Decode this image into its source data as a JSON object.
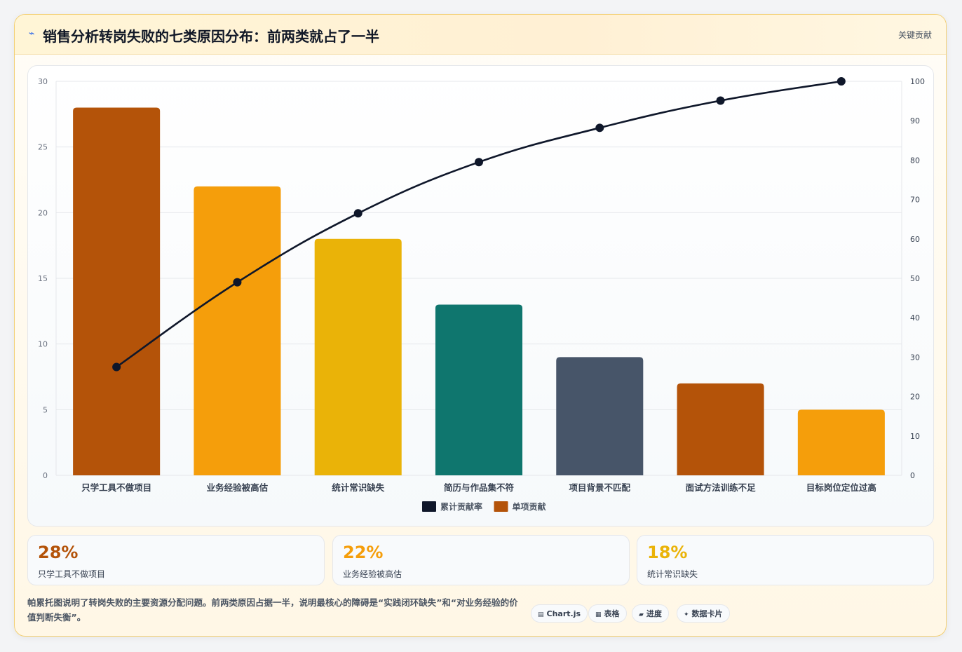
{
  "header": {
    "icon": "lightning-icon",
    "title": "销售分析转岗失败的七类原因分布：前两类就占了一半",
    "tag": "关键贡献"
  },
  "chart_data": {
    "type": "bar",
    "title": "",
    "categories": [
      "只学工具不做项目",
      "业务经验被高估",
      "统计常识缺失",
      "简历与作品集不符",
      "项目背景不匹配",
      "面试方法训练不足",
      "目标岗位定位过高"
    ],
    "series": [
      {
        "name": "单项贡献",
        "type": "bar",
        "axis": "left",
        "values": [
          28,
          22,
          18,
          13,
          9,
          7,
          5
        ]
      },
      {
        "name": "累计贡献率",
        "type": "line",
        "axis": "right",
        "values": [
          27.5,
          49,
          66.5,
          79.5,
          88.2,
          95.1,
          100
        ]
      }
    ],
    "bar_colors": [
      "#b45309",
      "#f59e0b",
      "#eab308",
      "#0f766e",
      "#475569",
      "#b45309",
      "#f59e0b"
    ],
    "line_color": "#0f172a",
    "ylim": [
      0,
      30
    ],
    "yticks": [
      0,
      5,
      10,
      15,
      20,
      25,
      30
    ],
    "y2lim": [
      0,
      100
    ],
    "y2ticks": [
      0,
      10,
      20,
      30,
      40,
      50,
      60,
      70,
      80,
      90,
      100
    ],
    "legend": [
      {
        "label": "累计贡献率",
        "color": "#0f172a"
      },
      {
        "label": "单项贡献",
        "color": "#b45309"
      }
    ],
    "legend_position": "bottom",
    "grid": true
  },
  "stats": [
    {
      "value": "28%",
      "label": "只学工具不做项目",
      "color": "#b45309"
    },
    {
      "value": "22%",
      "label": "业务经验被高估",
      "color": "#f59e0b"
    },
    {
      "value": "18%",
      "label": "统计常识缺失",
      "color": "#eab308"
    }
  ],
  "footer": {
    "note": "帕累托图说明了转岗失败的主要资源分配问题。前两类原因占据一半，说明最核心的障碍是“实践闭环缺失”和“对业务经验的价值判断失衡”。",
    "chips": [
      {
        "icon": "▤",
        "label": "Chart.js"
      },
      {
        "icon": "▦",
        "label": "表格"
      },
      {
        "icon": "▰",
        "label": "进度"
      },
      {
        "icon": "✦",
        "label": "数据卡片"
      }
    ]
  }
}
